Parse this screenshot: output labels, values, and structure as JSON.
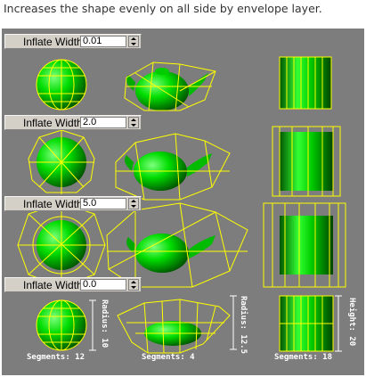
{
  "caption": "Increases the shape evenly on all side by envelope layer.",
  "controls": [
    {
      "label": "Inflate Width:",
      "value": "0.01"
    },
    {
      "label": "Inflate Width:",
      "value": "2.0"
    },
    {
      "label": "Inflate Width:",
      "value": "5.0"
    },
    {
      "label": "Inflate Width:",
      "value": "0.0"
    }
  ],
  "annotations": {
    "sphere_segments": "Segments: 12",
    "sphere_radius": "Radius: 10",
    "teapot_segments": "Segments: 4",
    "teapot_radius": "Radius: 12.5",
    "cylinder_segments": "Segments: 18",
    "cylinder_height": "Height: 20"
  },
  "colors": {
    "viewport_bg": "#7d7d7d",
    "wire": "#ffff00",
    "object_green": "#00cc00"
  }
}
